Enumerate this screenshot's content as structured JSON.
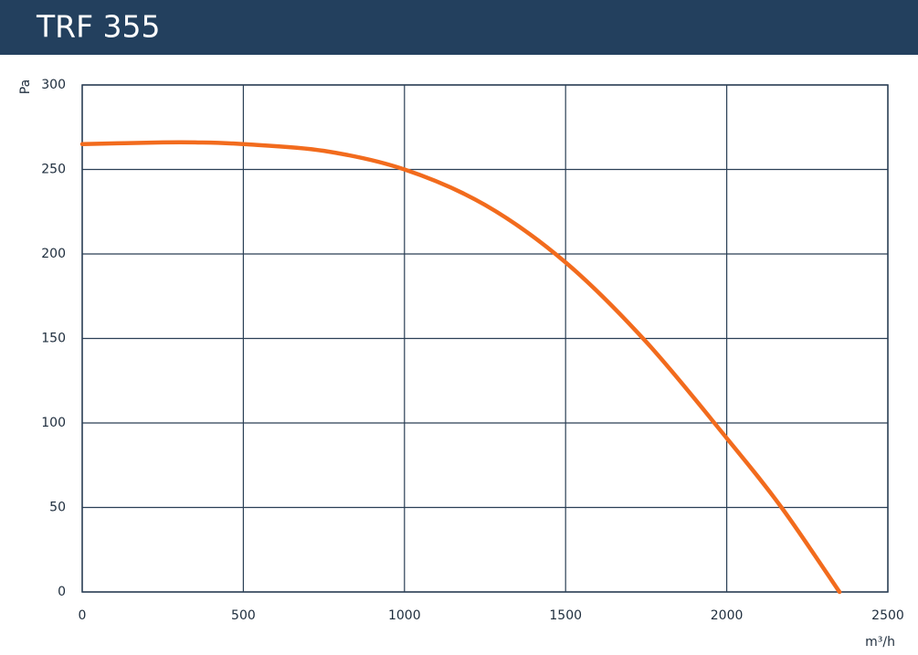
{
  "chart_data": {
    "type": "line",
    "title": "TRF 355",
    "x_label": "m³/h",
    "y_label": "Pa",
    "x": [
      0,
      250,
      350,
      500,
      750,
      1000,
      1250,
      1500,
      1750,
      2000,
      2170,
      2350
    ],
    "series": [
      {
        "name": "TRF 355",
        "color": "#f26b1d",
        "values": [
          265,
          266,
          266,
          265,
          261,
          250,
          229,
          195,
          148,
          91,
          50,
          0
        ]
      }
    ],
    "xlim": [
      0,
      2500
    ],
    "xticks": [
      0,
      500,
      1000,
      1500,
      2000,
      2500
    ],
    "ylim": [
      0,
      300
    ],
    "yticks": [
      0,
      50,
      100,
      150,
      200,
      250,
      300
    ],
    "grid": true
  }
}
